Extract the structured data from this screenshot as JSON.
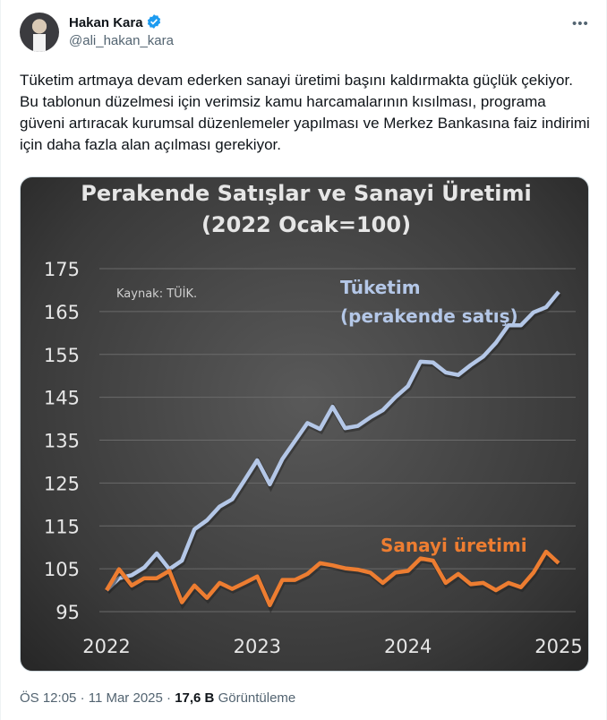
{
  "author": {
    "name": "Hakan Kara",
    "handle": "@ali_hakan_kara",
    "verified": true
  },
  "tweet_text": "Tüketim artmaya devam ederken sanayi üretimi başını kaldırmakta güçlük çekiyor. Bu tablonun düzelmesi için verimsiz kamu harcamalarının kısılması, programa güveni artıracak kurumsal düzenlemeler yapılması ve Merkez Bankasına faiz indirimi için daha fazla alan açılması gerekiyor.",
  "meta": {
    "time": "ÖS 12:05",
    "date": "11 Mar 2025",
    "views": "17,6 B",
    "views_label": "Görüntüleme",
    "sep": "·"
  },
  "chart_data": {
    "type": "line",
    "title": "Perakende Satışlar ve Sanayi Üretimi",
    "subtitle": "(2022 Ocak=100)",
    "source": "Kaynak: TÜİK.",
    "ylim": [
      95,
      175
    ],
    "yticks": [
      "175",
      "165",
      "155",
      "145",
      "135",
      "125",
      "115",
      "105",
      "95"
    ],
    "xticks": [
      "2022",
      "2023",
      "2024",
      "2025"
    ],
    "x_range": [
      "2022-01",
      "2025-01"
    ],
    "grid": true,
    "series": [
      {
        "name_line1": "Tüketim",
        "name_line2": "(perakende satış)",
        "color": "#b4c7e7",
        "values": [
          100,
          102.8,
          103.5,
          105.3,
          108.6,
          104.9,
          106.9,
          114.2,
          116.3,
          119.5,
          121.2,
          125.7,
          130.3,
          124.7,
          130.6,
          134.8,
          139,
          137.6,
          142.8,
          137.8,
          138.3,
          140.3,
          142,
          145,
          147.6,
          153.3,
          153.1,
          150.8,
          150.2,
          152.5,
          154.5,
          157.7,
          161.8,
          161.8,
          164.8,
          166,
          169.6
        ]
      },
      {
        "name": "Sanayi üretimi",
        "color": "#ed7d31",
        "values": [
          100,
          104.9,
          101.1,
          102.8,
          102.8,
          104.5,
          97.2,
          101.1,
          98.2,
          101.7,
          100.3,
          101.7,
          103.2,
          96.5,
          102.4,
          102.4,
          103.8,
          106.3,
          105.8,
          105.1,
          104.8,
          104.1,
          101.7,
          104.1,
          104.5,
          107.4,
          106.9,
          101.7,
          103.8,
          101.4,
          101.7,
          100,
          101.7,
          100.7,
          104.1,
          109,
          106.3
        ]
      }
    ]
  }
}
